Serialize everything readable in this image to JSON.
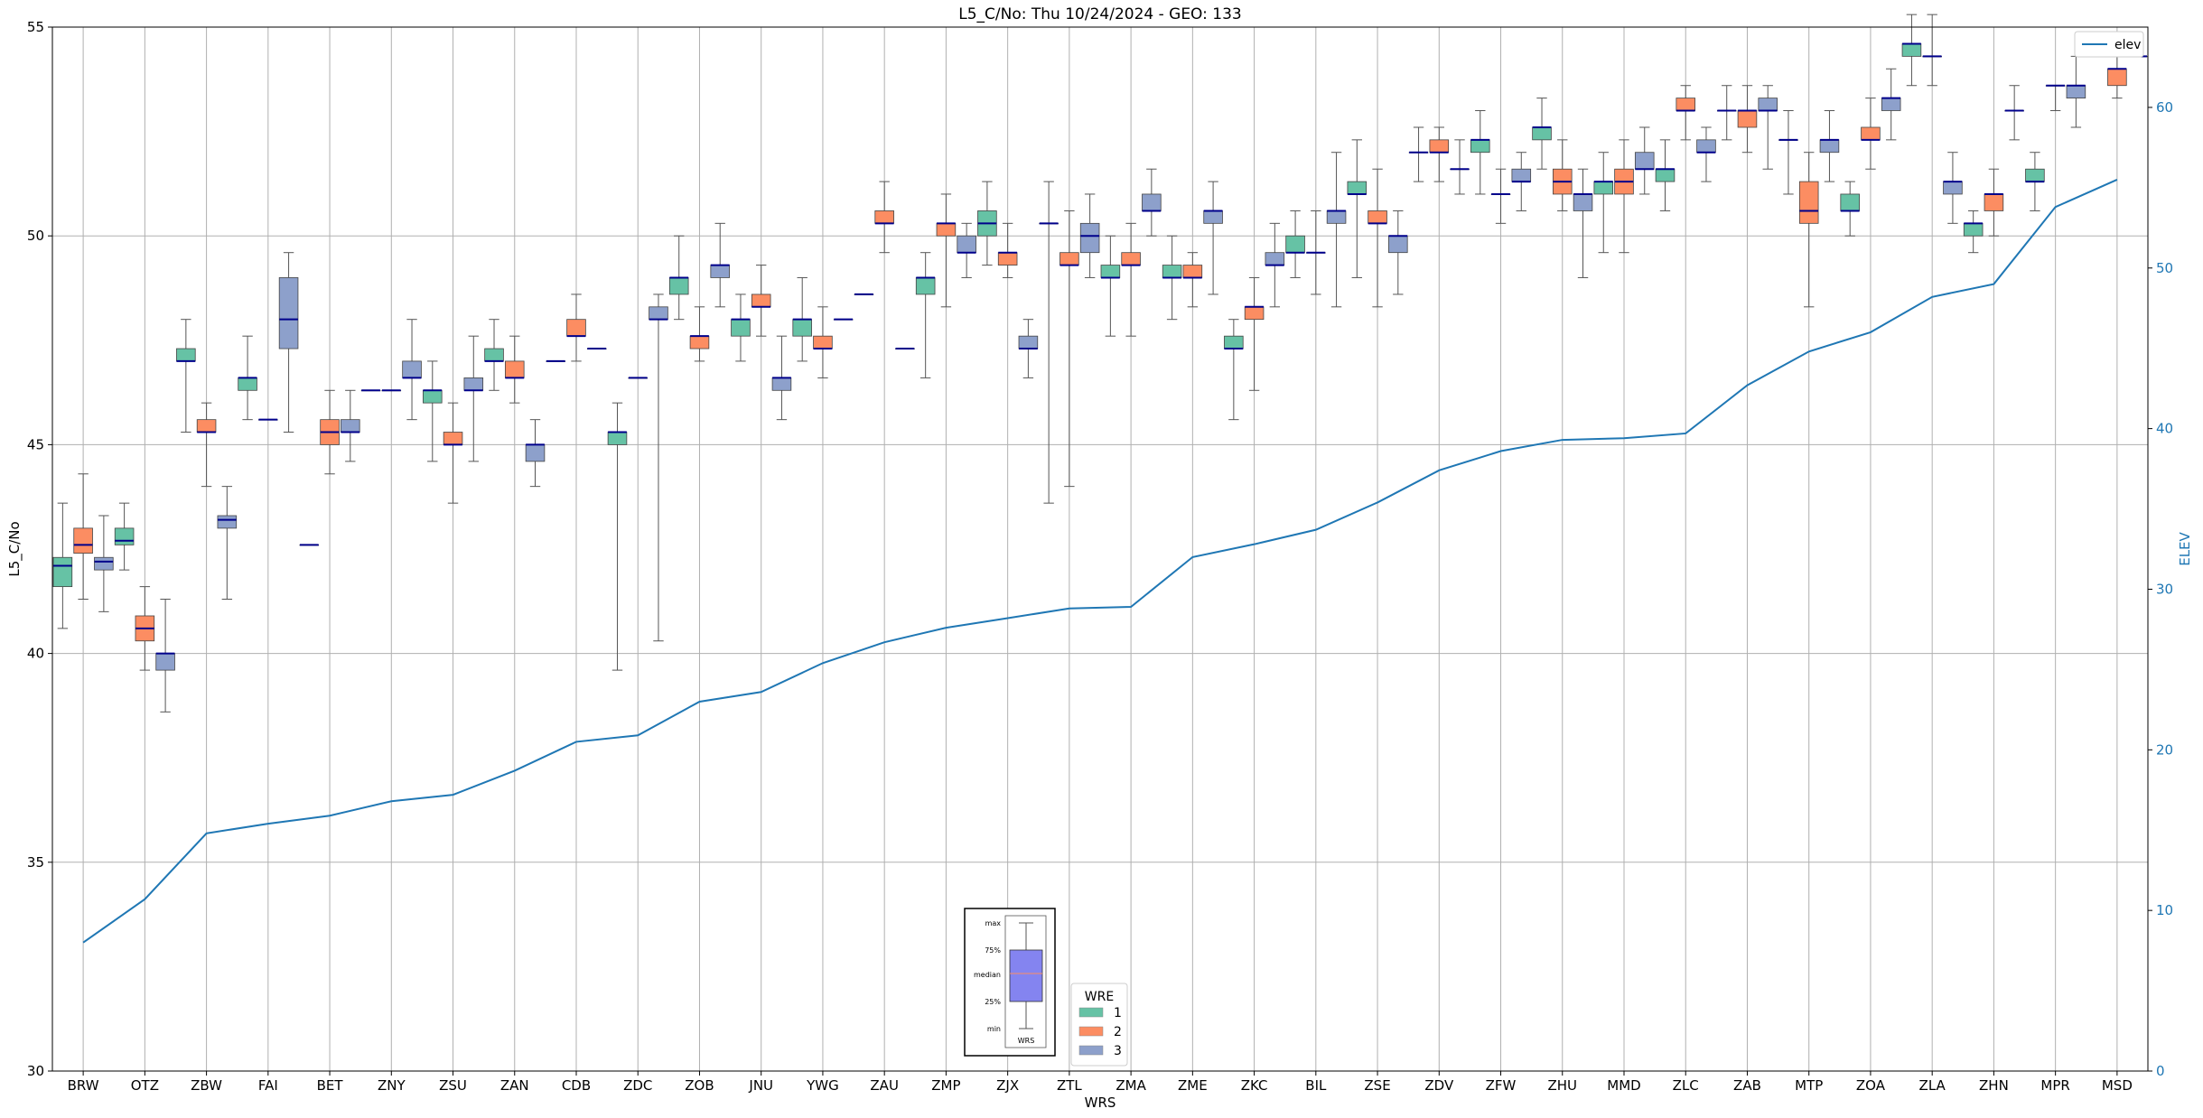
{
  "chart_data": {
    "type": "box",
    "title": "L5_C/No: Thu 10/24/2024 - GEO: 133",
    "xlabel": "WRS",
    "ylabel": "L5_C/No",
    "y2label": "ELEV",
    "ylim": [
      30,
      55
    ],
    "y2lim": [
      0,
      65
    ],
    "yticks": [
      "30",
      "35",
      "40",
      "45",
      "50",
      "55"
    ],
    "y2ticks": [
      "0",
      "10",
      "20",
      "30",
      "40",
      "50",
      "60"
    ],
    "grid": true,
    "categories": [
      "BRW",
      "OTZ",
      "ZBW",
      "FAI",
      "BET",
      "ZNY",
      "ZSU",
      "ZAN",
      "CDB",
      "ZDC",
      "ZOB",
      "JNU",
      "YWG",
      "ZAU",
      "ZMP",
      "ZJX",
      "ZTL",
      "ZMA",
      "ZME",
      "ZKC",
      "BIL",
      "ZSE",
      "ZDV",
      "ZFW",
      "ZHU",
      "MMD",
      "ZLC",
      "ZAB",
      "MTP",
      "ZOA",
      "ZLA",
      "ZHN",
      "MPR",
      "MSD"
    ],
    "legend": {
      "title": "WRE",
      "placement": "bottom-center",
      "entries": [
        {
          "label": "1",
          "color": "#66c2a5"
        },
        {
          "label": "2",
          "color": "#fc8d62"
        },
        {
          "label": "3",
          "color": "#8da0cb"
        }
      ]
    },
    "line_legend": {
      "label": "elev",
      "placement": "top-right",
      "color": "#1f77b4"
    },
    "key_inset": {
      "labels": [
        "max",
        "75%",
        "median",
        "25%",
        "min"
      ],
      "caption": "WRS"
    },
    "median_color": "#00008b",
    "boxes": [
      [
        [
          40.6,
          41.6,
          42.1,
          42.3,
          43.6
        ],
        [
          41.3,
          42.4,
          42.6,
          43.0,
          44.3
        ],
        [
          41.0,
          42.0,
          42.2,
          42.3,
          43.3
        ]
      ],
      [
        [
          42.0,
          42.6,
          42.7,
          43.0,
          43.6
        ],
        [
          39.6,
          40.3,
          40.6,
          40.9,
          41.6
        ],
        [
          38.6,
          39.6,
          40.0,
          40.0,
          41.3
        ]
      ],
      [
        [
          45.3,
          47.0,
          47.0,
          47.3,
          48.0
        ],
        [
          44.0,
          45.3,
          45.3,
          45.6,
          46.0
        ],
        [
          41.3,
          43.0,
          43.2,
          43.3,
          44.0
        ]
      ],
      [
        [
          45.6,
          46.3,
          46.6,
          46.6,
          47.6
        ],
        [
          45.6,
          45.6,
          45.6,
          45.6,
          45.6
        ],
        [
          45.3,
          47.3,
          48.0,
          49.0,
          49.6
        ]
      ],
      [
        [
          42.6,
          42.6,
          42.6,
          42.6,
          42.6
        ],
        [
          44.3,
          45.0,
          45.3,
          45.6,
          46.3
        ],
        [
          44.6,
          45.3,
          45.3,
          45.6,
          46.3
        ]
      ],
      [
        [
          46.3,
          46.3,
          46.3,
          46.3,
          46.3
        ],
        [
          46.3,
          46.3,
          46.3,
          46.3,
          46.3
        ],
        [
          45.6,
          46.6,
          46.6,
          47.0,
          48.0
        ]
      ],
      [
        [
          44.6,
          46.0,
          46.3,
          46.3,
          47.0
        ],
        [
          43.6,
          45.0,
          45.0,
          45.3,
          46.0
        ],
        [
          44.6,
          46.3,
          46.3,
          46.6,
          47.6
        ]
      ],
      [
        [
          46.3,
          47.0,
          47.0,
          47.3,
          48.0
        ],
        [
          46.0,
          46.6,
          46.6,
          47.0,
          47.6
        ],
        [
          44.0,
          44.6,
          45.0,
          45.0,
          45.6
        ]
      ],
      [
        [
          47.0,
          47.0,
          47.0,
          47.0,
          47.0
        ],
        [
          47.0,
          47.6,
          47.6,
          48.0,
          48.6
        ],
        [
          47.3,
          47.3,
          47.3,
          47.3,
          47.3
        ]
      ],
      [
        [
          39.6,
          45.0,
          45.3,
          45.3,
          46.0
        ],
        [
          46.6,
          46.6,
          46.6,
          46.6,
          46.6
        ],
        [
          40.3,
          48.0,
          48.0,
          48.3,
          48.6
        ]
      ],
      [
        [
          48.0,
          48.6,
          49.0,
          49.0,
          50.0
        ],
        [
          47.0,
          47.3,
          47.6,
          47.6,
          48.3
        ],
        [
          48.3,
          49.0,
          49.3,
          49.3,
          50.3
        ]
      ],
      [
        [
          47.0,
          47.6,
          48.0,
          48.0,
          48.6
        ],
        [
          47.6,
          48.3,
          48.3,
          48.6,
          49.3
        ],
        [
          45.6,
          46.3,
          46.6,
          46.6,
          47.6
        ]
      ],
      [
        [
          47.0,
          47.6,
          48.0,
          48.0,
          49.0
        ],
        [
          46.6,
          47.3,
          47.3,
          47.6,
          48.3
        ],
        [
          48.0,
          48.0,
          48.0,
          48.0,
          48.0
        ]
      ],
      [
        [
          48.6,
          48.6,
          48.6,
          48.6,
          48.6
        ],
        [
          49.6,
          50.3,
          50.3,
          50.6,
          51.3
        ],
        [
          47.3,
          47.3,
          47.3,
          47.3,
          47.3
        ]
      ],
      [
        [
          46.6,
          48.6,
          49.0,
          49.0,
          49.6
        ],
        [
          48.3,
          50.0,
          50.3,
          50.3,
          51.0
        ],
        [
          49.0,
          49.6,
          49.6,
          50.0,
          50.3
        ]
      ],
      [
        [
          49.3,
          50.0,
          50.3,
          50.6,
          51.3
        ],
        [
          49.0,
          49.3,
          49.6,
          49.6,
          50.3
        ],
        [
          46.6,
          47.3,
          47.3,
          47.6,
          48.0
        ]
      ],
      [
        [
          43.6,
          50.3,
          50.3,
          50.3,
          51.3
        ],
        [
          44.0,
          49.3,
          49.3,
          49.6,
          50.6
        ],
        [
          49.0,
          49.6,
          50.0,
          50.3,
          51.0
        ]
      ],
      [
        [
          47.6,
          49.0,
          49.0,
          49.3,
          50.0
        ],
        [
          47.6,
          49.3,
          49.3,
          49.6,
          50.3
        ],
        [
          50.0,
          50.6,
          50.6,
          51.0,
          51.6
        ]
      ],
      [
        [
          48.0,
          49.0,
          49.0,
          49.3,
          50.0
        ],
        [
          48.3,
          49.0,
          49.0,
          49.3,
          49.6
        ],
        [
          48.6,
          50.3,
          50.6,
          50.6,
          51.3
        ]
      ],
      [
        [
          45.6,
          47.3,
          47.3,
          47.6,
          48.0
        ],
        [
          46.3,
          48.0,
          48.3,
          48.3,
          49.0
        ],
        [
          48.3,
          49.3,
          49.3,
          49.6,
          50.3
        ]
      ],
      [
        [
          49.0,
          49.6,
          49.6,
          50.0,
          50.6
        ],
        [
          48.6,
          49.6,
          49.6,
          49.6,
          50.6
        ],
        [
          48.3,
          50.3,
          50.6,
          50.6,
          52.0
        ]
      ],
      [
        [
          49.0,
          51.0,
          51.0,
          51.3,
          52.3
        ],
        [
          48.3,
          50.3,
          50.3,
          50.6,
          51.6
        ],
        [
          48.6,
          49.6,
          50.0,
          50.0,
          50.6
        ]
      ],
      [
        [
          51.3,
          52.0,
          52.0,
          52.0,
          52.6
        ],
        [
          51.3,
          52.0,
          52.0,
          52.3,
          52.6
        ],
        [
          51.0,
          51.6,
          51.6,
          51.6,
          52.3
        ]
      ],
      [
        [
          51.0,
          52.0,
          52.3,
          52.3,
          53.0
        ],
        [
          50.3,
          51.0,
          51.0,
          51.0,
          51.6
        ],
        [
          50.6,
          51.3,
          51.3,
          51.6,
          52.0
        ]
      ],
      [
        [
          51.6,
          52.3,
          52.6,
          52.6,
          53.3
        ],
        [
          50.6,
          51.0,
          51.3,
          51.6,
          52.3
        ],
        [
          49.0,
          50.6,
          51.0,
          51.0,
          51.6
        ]
      ],
      [
        [
          49.6,
          51.0,
          51.3,
          51.3,
          52.0
        ],
        [
          49.6,
          51.0,
          51.3,
          51.6,
          52.3
        ],
        [
          51.0,
          51.6,
          51.6,
          52.0,
          52.6
        ]
      ],
      [
        [
          50.6,
          51.3,
          51.6,
          51.6,
          52.3
        ],
        [
          52.3,
          53.0,
          53.0,
          53.3,
          53.6
        ],
        [
          51.3,
          52.0,
          52.0,
          52.3,
          52.6
        ]
      ],
      [
        [
          52.3,
          53.0,
          53.0,
          53.0,
          53.6
        ],
        [
          52.0,
          52.6,
          53.0,
          53.0,
          53.6
        ],
        [
          51.6,
          53.0,
          53.0,
          53.3,
          53.6
        ]
      ],
      [
        [
          51.0,
          52.3,
          52.3,
          52.3,
          53.0
        ],
        [
          48.3,
          50.3,
          50.6,
          51.3,
          52.0
        ],
        [
          51.3,
          52.0,
          52.3,
          52.3,
          53.0
        ]
      ],
      [
        [
          50.0,
          50.6,
          50.6,
          51.0,
          51.3
        ],
        [
          51.6,
          52.3,
          52.3,
          52.6,
          53.3
        ],
        [
          52.3,
          53.0,
          53.3,
          53.3,
          54.0
        ]
      ],
      [
        [
          53.6,
          54.3,
          54.6,
          54.6,
          55.3
        ],
        [
          53.6,
          54.3,
          54.3,
          54.3,
          55.3
        ],
        [
          50.3,
          51.0,
          51.3,
          51.3,
          52.0
        ]
      ],
      [
        [
          49.6,
          50.0,
          50.3,
          50.3,
          50.6
        ],
        [
          50.0,
          50.6,
          51.0,
          51.0,
          51.6
        ],
        [
          52.3,
          53.0,
          53.0,
          53.0,
          53.6
        ]
      ],
      [
        [
          50.6,
          51.3,
          51.3,
          51.6,
          52.0
        ],
        [
          53.0,
          53.6,
          53.6,
          53.6,
          53.6
        ],
        [
          52.6,
          53.3,
          53.6,
          53.6,
          54.3
        ]
      ],
      [
        [
          54.3,
          54.3,
          54.3,
          54.3,
          54.3
        ],
        [
          53.3,
          53.6,
          54.0,
          54.0,
          54.6
        ],
        [
          54.3,
          54.3,
          54.3,
          54.3,
          54.3
        ]
      ]
    ],
    "elev": [
      8.0,
      10.7,
      14.8,
      15.4,
      15.9,
      16.8,
      17.2,
      18.7,
      20.5,
      20.9,
      23.0,
      23.6,
      25.4,
      26.7,
      27.6,
      28.2,
      28.8,
      28.9,
      32.0,
      32.8,
      33.7,
      35.4,
      37.4,
      38.6,
      39.3,
      39.4,
      39.7,
      42.7,
      44.8,
      46.0,
      48.2,
      49.0,
      53.8,
      55.5
    ]
  }
}
